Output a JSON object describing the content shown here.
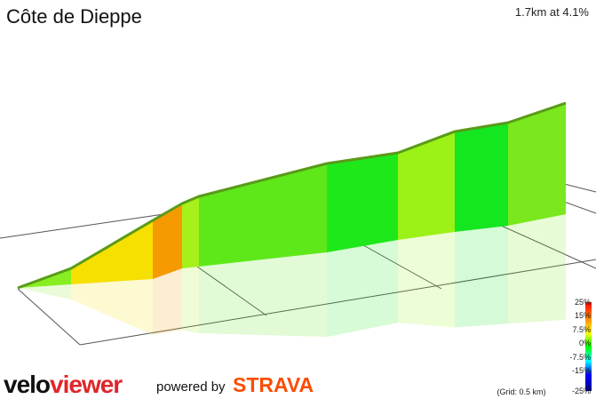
{
  "header": {
    "title": "Côte de Dieppe",
    "summary": "1.7km at 4.1%"
  },
  "legend": {
    "scale_labels": [
      "25%",
      "15%",
      "7.5%",
      "0%",
      "-7.5%",
      "-15%",
      "-25%"
    ],
    "grid_note": "(Grid: 0.5 km)"
  },
  "branding": {
    "logo_velo": "velo",
    "logo_viewer": "viewer",
    "powered_by": "powered by",
    "strava": "STRAVA"
  },
  "colors": {
    "accent_red": "#e0262b",
    "strava_orange": "#fc4c02",
    "gradient_scale": [
      "#ff0000",
      "#ff9900",
      "#ffff00",
      "#00ff00",
      "#00ffff",
      "#0000ff",
      "#000088"
    ]
  },
  "chart_data": {
    "type": "area",
    "description_type": "3d-elevation-profile",
    "segments": [
      {
        "gradient_pct": 5.5,
        "color": "#88ee22"
      },
      {
        "gradient_pct": 9.5,
        "color": "#f5e000"
      },
      {
        "gradient_pct": 12.0,
        "color": "#f59a00"
      },
      {
        "gradient_pct": 5.0,
        "color": "#a6f01c"
      },
      {
        "gradient_pct": 3.0,
        "color": "#5ee81a"
      },
      {
        "gradient_pct": 1.5,
        "color": "#1ee81a"
      },
      {
        "gradient_pct": 4.5,
        "color": "#9cf216"
      },
      {
        "gradient_pct": 2.0,
        "color": "#14e620"
      },
      {
        "gradient_pct": 4.0,
        "color": "#7ae81c"
      }
    ]
  }
}
